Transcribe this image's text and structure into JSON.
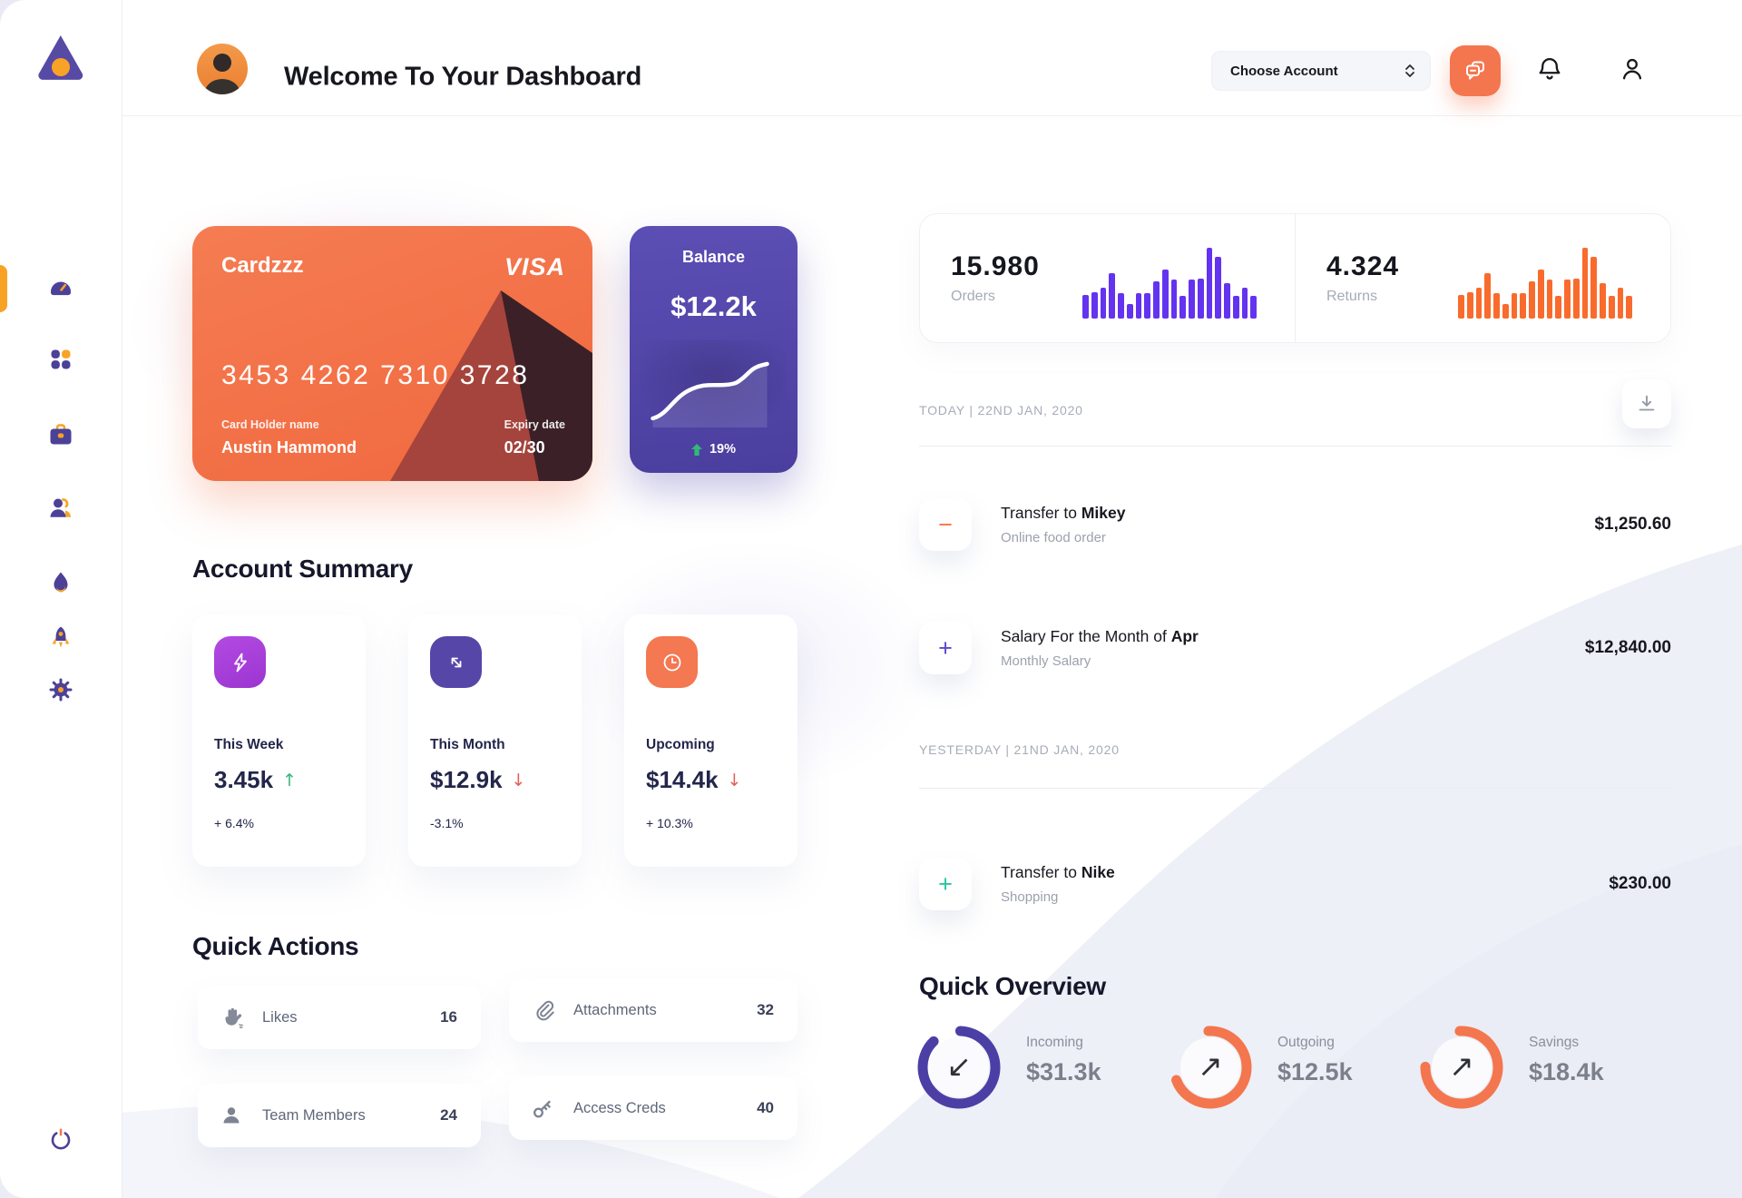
{
  "theme": {
    "orange": "#F4764E",
    "purple": "#5646A8",
    "bar_purple": "#6433F0",
    "bar_orange": "#F96B2C",
    "green": "#34B879",
    "red": "#E2635C",
    "teal": "#2BC4A2",
    "ring_purple": "#4B3FA5"
  },
  "sidebar": {
    "icons": [
      "dashboard",
      "apps-grid",
      "briefcase",
      "users",
      "flame",
      "rocket",
      "settings-gear"
    ],
    "active_icon": "dashboard",
    "footer_icon": "power"
  },
  "header": {
    "title": "Welcome To Your Dashboard",
    "account_selector_label": "Choose Account"
  },
  "credit_card": {
    "name": "Cardzzz",
    "brand": "VISA",
    "number": "3453 4262 7310 3728",
    "holder_label": "Card Holder name",
    "holder_name": "Austin Hammond",
    "expiry_label": "Expiry date",
    "expiry": "02/30"
  },
  "balance_card": {
    "title": "Balance",
    "amount": "$12.2k",
    "change": "19%",
    "change_color": "#FFFFFF"
  },
  "stats": {
    "orders": {
      "value": "15.980",
      "label": "Orders",
      "bars": [
        33,
        36,
        43,
        64,
        35,
        20,
        35,
        35,
        52,
        69,
        55,
        32,
        55,
        56,
        100,
        86,
        49,
        32,
        43,
        32
      ]
    },
    "returns": {
      "value": "4.324",
      "label": "Returns",
      "bars": [
        33,
        36,
        43,
        64,
        35,
        20,
        35,
        35,
        52,
        69,
        55,
        32,
        55,
        56,
        100,
        86,
        49,
        32,
        43,
        32
      ]
    }
  },
  "account_summary": {
    "heading": "Account Summary",
    "cards": [
      {
        "label": "This Week",
        "value": "3.45k",
        "arrow": "↑",
        "arrow_color": "#34B879",
        "delta": "+ 6.4%",
        "icon": "lightning-bolt",
        "icon_bg": "#A643D8"
      },
      {
        "label": "This Month",
        "value": "$12.9k",
        "arrow": "↓",
        "arrow_color": "#E2635C",
        "delta": "-3.1%",
        "icon": "transfer-arrows",
        "icon_bg": "#5646A8"
      },
      {
        "label": "Upcoming",
        "value": "$14.4k",
        "arrow": "↓",
        "arrow_color": "#E2635C",
        "delta": "+ 10.3%",
        "icon": "clock",
        "icon_bg": "#F47851"
      }
    ]
  },
  "quick_actions": {
    "heading": "Quick Actions",
    "items": [
      {
        "label": "Likes",
        "count": "16",
        "icon": "clap"
      },
      {
        "label": "Attachments",
        "count": "32",
        "icon": "paperclip"
      },
      {
        "label": "Team Members",
        "count": "24",
        "icon": "person"
      },
      {
        "label": "Access Creds",
        "count": "40",
        "icon": "key"
      }
    ]
  },
  "transactions": {
    "groups": [
      {
        "date": "TODAY | 22ND JAN, 2020",
        "items": [
          {
            "title_prefix": "Transfer to ",
            "title_bold": "Mikey",
            "subtitle": "Online food order",
            "amount": "$1,250.60",
            "sign": "−",
            "sign_color": "#F4764E"
          },
          {
            "title_prefix": "Salary For the Month of ",
            "title_bold": "Apr",
            "subtitle": "Monthly Salary",
            "amount": "$12,840.00",
            "sign": "+",
            "sign_color": "#5B4BC4"
          }
        ]
      },
      {
        "date": "YESTERDAY | 21ND JAN, 2020",
        "items": [
          {
            "title_prefix": "Transfer to ",
            "title_bold": "Nike",
            "subtitle": "Shopping",
            "amount": "$230.00",
            "sign": "+",
            "sign_color": "#2BC4A2"
          }
        ]
      }
    ]
  },
  "quick_overview": {
    "heading": "Quick Overview",
    "items": [
      {
        "label": "Incoming",
        "amount": "$31.3k",
        "arrow": "↙",
        "ring_color": "#4B3FA5",
        "pct": 87
      },
      {
        "label": "Outgoing",
        "amount": "$12.5k",
        "arrow": "↗",
        "ring_color": "#F4764E",
        "pct": 70
      },
      {
        "label": "Savings",
        "amount": "$18.4k",
        "arrow": "↗",
        "ring_color": "#F4764E",
        "pct": 76
      }
    ]
  }
}
